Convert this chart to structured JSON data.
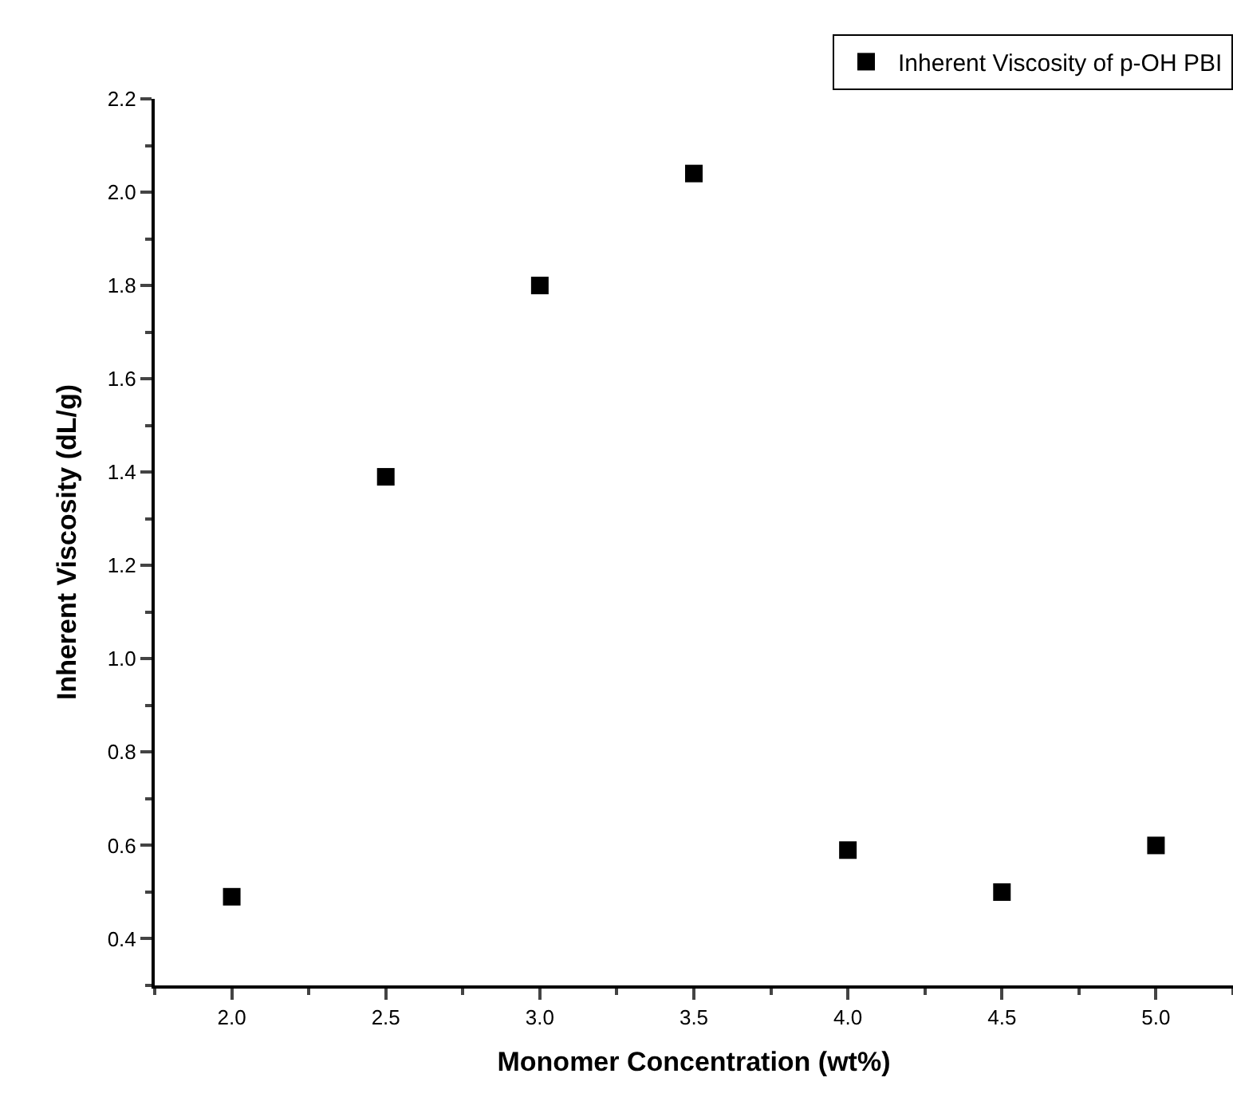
{
  "chart_data": {
    "type": "scatter",
    "xlabel": "Monomer Concentration (wt%)",
    "ylabel": "Inherent Viscosity (dL/g)",
    "x": [
      2.0,
      2.5,
      3.0,
      3.5,
      4.0,
      4.5,
      5.0
    ],
    "series": [
      {
        "name": "Inherent Viscosity of p-OH PBI",
        "color": "#000000",
        "values": [
          0.49,
          1.39,
          1.8,
          2.04,
          0.59,
          0.5,
          0.6
        ]
      }
    ],
    "xlim": [
      1.75,
      5.25
    ],
    "xticks": [
      {
        "value": 2,
        "label": "2.0"
      },
      2.5,
      {
        "value": 3,
        "label": "3.0"
      },
      3.5,
      {
        "value": 4,
        "label": "4.0"
      },
      4.5,
      {
        "value": 5,
        "label": "5.0"
      }
    ],
    "ylim": [
      0.3,
      2.2
    ],
    "yticks": [
      0.4,
      0.6,
      0.8,
      {
        "value": 1,
        "label": "1.0"
      },
      1.2,
      1.4,
      1.6,
      1.8,
      {
        "value": 2,
        "label": "2.0"
      },
      2.2
    ],
    "legend": "top right",
    "marker": "square"
  }
}
